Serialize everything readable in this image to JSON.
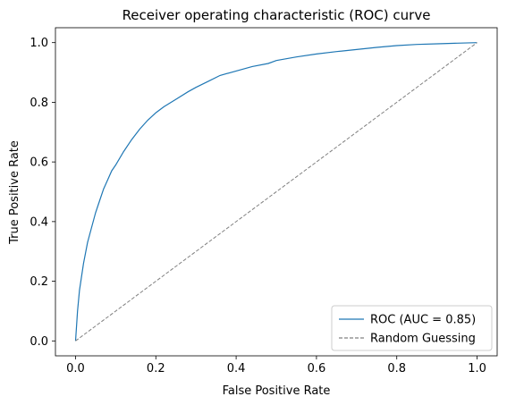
{
  "chart_data": {
    "type": "line",
    "title": "Receiver operating characteristic (ROC) curve",
    "xlabel": "False Positive Rate",
    "ylabel": "True Positive Rate",
    "xlim": [
      -0.05,
      1.05
    ],
    "ylim": [
      -0.05,
      1.05
    ],
    "xticks": [
      "0.0",
      "0.2",
      "0.4",
      "0.6",
      "0.8",
      "1.0"
    ],
    "yticks": [
      "0.0",
      "0.2",
      "0.4",
      "0.6",
      "0.8",
      "1.0"
    ],
    "grid": false,
    "legend_position": "lower-right",
    "series": [
      {
        "name": "ROC (AUC = 0.85)",
        "color": "#1f77b4",
        "style": "solid",
        "x": [
          0.0,
          0.005,
          0.01,
          0.02,
          0.03,
          0.04,
          0.05,
          0.06,
          0.07,
          0.08,
          0.09,
          0.1,
          0.12,
          0.14,
          0.16,
          0.18,
          0.2,
          0.22,
          0.25,
          0.28,
          0.3,
          0.33,
          0.36,
          0.4,
          0.44,
          0.48,
          0.5,
          0.55,
          0.6,
          0.65,
          0.7,
          0.75,
          0.8,
          0.85,
          0.9,
          0.95,
          1.0
        ],
        "y": [
          0.0,
          0.1,
          0.17,
          0.26,
          0.33,
          0.38,
          0.43,
          0.47,
          0.51,
          0.54,
          0.57,
          0.59,
          0.635,
          0.675,
          0.71,
          0.74,
          0.765,
          0.785,
          0.81,
          0.835,
          0.85,
          0.87,
          0.89,
          0.905,
          0.92,
          0.93,
          0.94,
          0.952,
          0.962,
          0.97,
          0.977,
          0.984,
          0.99,
          0.994,
          0.996,
          0.998,
          1.0
        ]
      },
      {
        "name": "Random Guessing",
        "color": "#808080",
        "style": "dashed",
        "x": [
          0.0,
          1.0
        ],
        "y": [
          0.0,
          1.0
        ]
      }
    ]
  }
}
